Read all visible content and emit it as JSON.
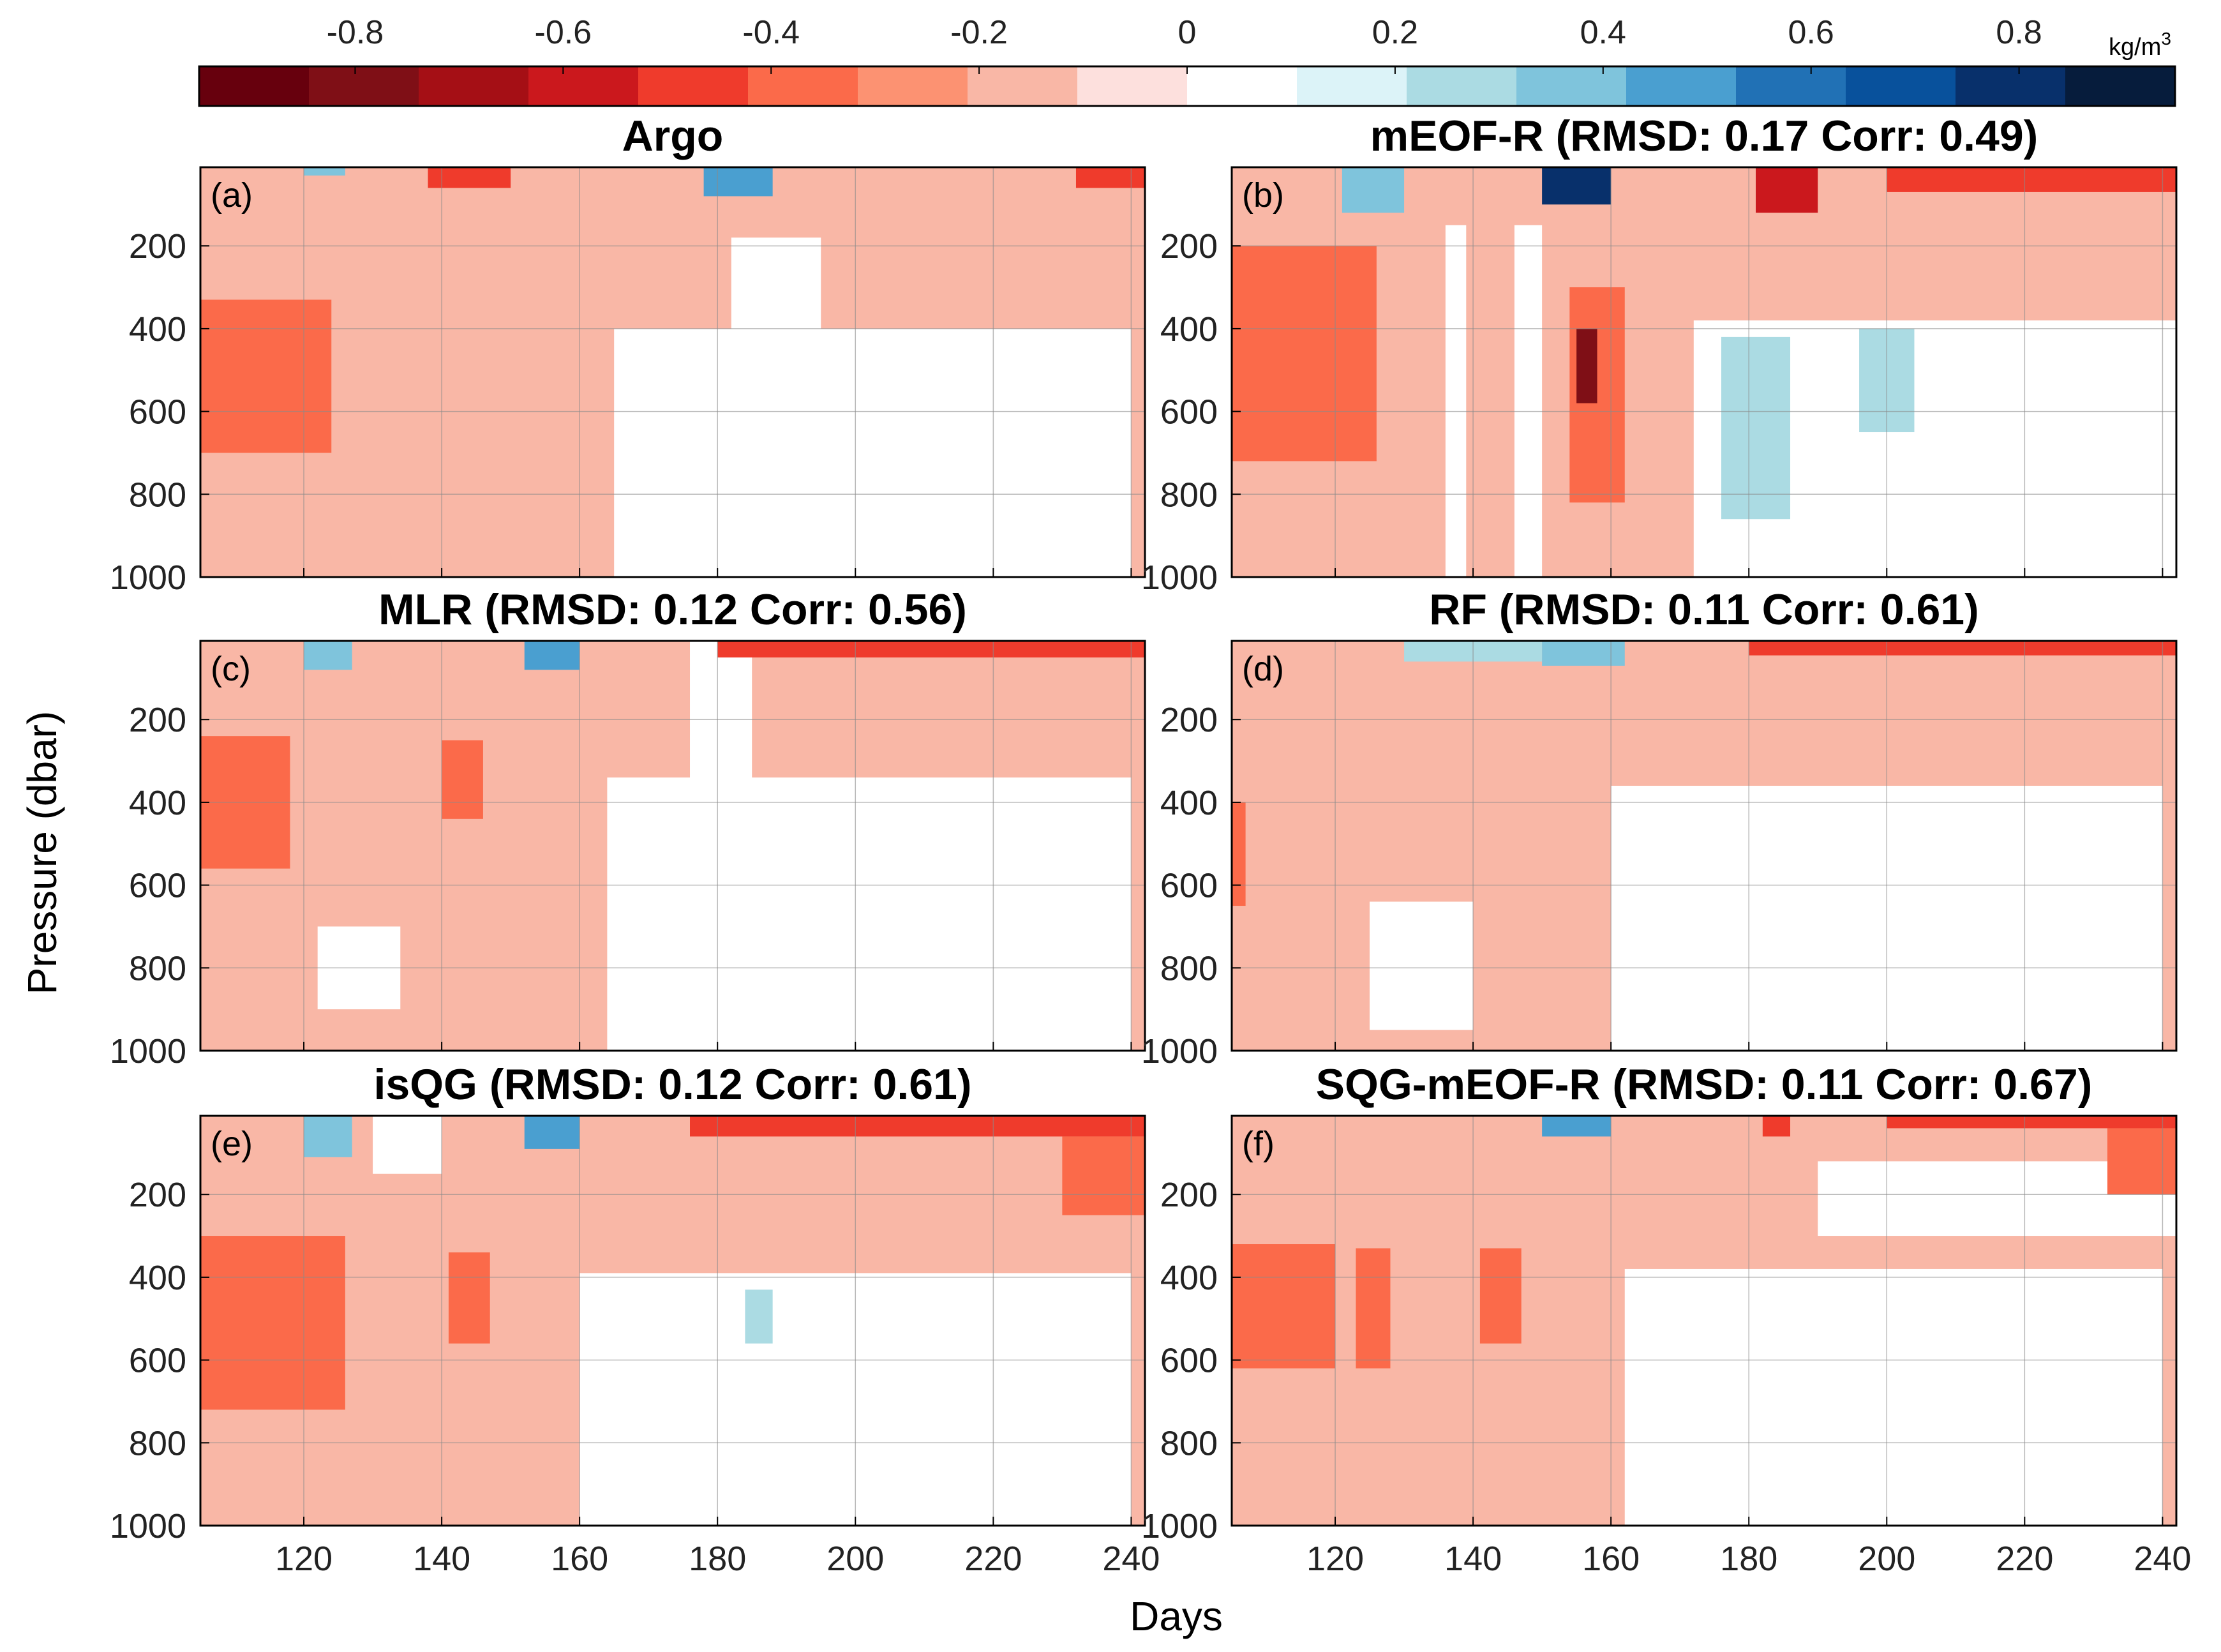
{
  "chart_data": {
    "type": "heatmap",
    "colorbar": {
      "unit": "kg/m",
      "unit_superscript": "3",
      "ticks": [
        -0.8,
        -0.6,
        -0.4,
        -0.2,
        0,
        0.2,
        0.4,
        0.6,
        0.8
      ],
      "tick_labels": [
        "-0.8",
        "-0.6",
        "-0.4",
        "-0.2",
        "0",
        "0.2",
        "0.4",
        "0.6",
        "0.8"
      ],
      "range": [
        -0.95,
        0.95
      ],
      "colors": [
        "#67000d",
        "#7f0f16",
        "#a50f15",
        "#cb181d",
        "#ef3b2c",
        "#fb6a4a",
        "#fc9272",
        "#f9b7a6",
        "#fde0dd",
        "#ffffff",
        "#dcf3f8",
        "#abdbe3",
        "#7fc4dc",
        "#4a9fd0",
        "#2171b5",
        "#08519c",
        "#08306b",
        "#061c3c"
      ]
    },
    "x_axis": {
      "label": "Days",
      "range": [
        105,
        242
      ],
      "ticks": [
        120,
        140,
        160,
        180,
        200,
        220,
        240
      ],
      "tick_labels": [
        "120",
        "140",
        "160",
        "180",
        "200",
        "220",
        "240"
      ]
    },
    "y_axis": {
      "label": "Pressure (dbar)",
      "range": [
        10,
        1000
      ],
      "ticks": [
        200,
        400,
        600,
        800,
        1000
      ],
      "tick_labels": [
        "200",
        "400",
        "600",
        "800",
        "1000"
      ],
      "reversed": true
    },
    "panels": [
      {
        "id": "a",
        "label": "(a)",
        "title": "Argo",
        "method": "Argo",
        "rmsd": null,
        "corr": null
      },
      {
        "id": "b",
        "label": "(b)",
        "title": "mEOF-R (RMSD: 0.17 Corr: 0.49)",
        "method": "mEOF-R",
        "rmsd": 0.17,
        "corr": 0.49
      },
      {
        "id": "c",
        "label": "(c)",
        "title": "MLR (RMSD: 0.12 Corr: 0.56)",
        "method": "MLR",
        "rmsd": 0.12,
        "corr": 0.56
      },
      {
        "id": "d",
        "label": "(d)",
        "title": "RF (RMSD: 0.11 Corr: 0.61)",
        "method": "RF",
        "rmsd": 0.11,
        "corr": 0.61
      },
      {
        "id": "e",
        "label": "(e)",
        "title": "isQG (RMSD: 0.12 Corr: 0.61)",
        "method": "isQG",
        "rmsd": 0.12,
        "corr": 0.61
      },
      {
        "id": "f",
        "label": "(f)",
        "title": "SQG-mEOF-R (RMSD: 0.11 Corr: 0.67)",
        "method": "SQG-mEOF-R",
        "rmsd": 0.11,
        "corr": 0.67
      }
    ],
    "anomaly_patches": {
      "a": [
        {
          "day": [
            105,
            242
          ],
          "p": [
            10,
            1000
          ],
          "v": -0.15
        },
        {
          "day": [
            165,
            240
          ],
          "p": [
            400,
            1000
          ],
          "v": 0
        },
        {
          "day": [
            182,
            195
          ],
          "p": [
            180,
            420
          ],
          "v": 0
        },
        {
          "day": [
            105,
            124
          ],
          "p": [
            330,
            700
          ],
          "v": -0.35
        },
        {
          "day": [
            138,
            150
          ],
          "p": [
            10,
            60
          ],
          "v": -0.45
        },
        {
          "day": [
            178,
            188
          ],
          "p": [
            10,
            80
          ],
          "v": 0.45
        },
        {
          "day": [
            232,
            242
          ],
          "p": [
            10,
            60
          ],
          "v": -0.45
        },
        {
          "day": [
            120,
            126
          ],
          "p": [
            10,
            30
          ],
          "v": 0.35
        }
      ],
      "b": [
        {
          "day": [
            105,
            242
          ],
          "p": [
            10,
            1000
          ],
          "v": -0.15
        },
        {
          "day": [
            172,
            242
          ],
          "p": [
            380,
            1000
          ],
          "v": 0
        },
        {
          "day": [
            136,
            139
          ],
          "p": [
            150,
            1000
          ],
          "v": 0
        },
        {
          "day": [
            146,
            150
          ],
          "p": [
            150,
            1000
          ],
          "v": 0
        },
        {
          "day": [
            105,
            126
          ],
          "p": [
            200,
            720
          ],
          "v": -0.35
        },
        {
          "day": [
            154,
            162
          ],
          "p": [
            300,
            820
          ],
          "v": -0.35
        },
        {
          "day": [
            155,
            158
          ],
          "p": [
            400,
            580
          ],
          "v": -0.75
        },
        {
          "day": [
            121,
            130
          ],
          "p": [
            10,
            120
          ],
          "v": 0.35
        },
        {
          "day": [
            150,
            160
          ],
          "p": [
            10,
            100
          ],
          "v": 0.75
        },
        {
          "day": [
            176,
            186
          ],
          "p": [
            420,
            860
          ],
          "v": 0.25
        },
        {
          "day": [
            196,
            204
          ],
          "p": [
            400,
            650
          ],
          "v": 0.25
        },
        {
          "day": [
            181,
            190
          ],
          "p": [
            10,
            120
          ],
          "v": -0.55
        },
        {
          "day": [
            200,
            242
          ],
          "p": [
            10,
            70
          ],
          "v": -0.45
        }
      ],
      "c": [
        {
          "day": [
            105,
            242
          ],
          "p": [
            10,
            1000
          ],
          "v": -0.15
        },
        {
          "day": [
            164,
            240
          ],
          "p": [
            340,
            1000
          ],
          "v": 0
        },
        {
          "day": [
            176,
            185
          ],
          "p": [
            10,
            340
          ],
          "v": 0
        },
        {
          "day": [
            120,
            127
          ],
          "p": [
            10,
            80
          ],
          "v": 0.35
        },
        {
          "day": [
            152,
            160
          ],
          "p": [
            10,
            80
          ],
          "v": 0.45
        },
        {
          "day": [
            105,
            118
          ],
          "p": [
            240,
            560
          ],
          "v": -0.35
        },
        {
          "day": [
            140,
            146
          ],
          "p": [
            250,
            440
          ],
          "v": -0.35
        },
        {
          "day": [
            180,
            242
          ],
          "p": [
            10,
            50
          ],
          "v": -0.45
        },
        {
          "day": [
            122,
            134
          ],
          "p": [
            700,
            900
          ],
          "v": 0
        }
      ],
      "d": [
        {
          "day": [
            105,
            242
          ],
          "p": [
            10,
            1000
          ],
          "v": -0.15
        },
        {
          "day": [
            160,
            240
          ],
          "p": [
            360,
            1000
          ],
          "v": 0
        },
        {
          "day": [
            125,
            140
          ],
          "p": [
            640,
            950
          ],
          "v": 0
        },
        {
          "day": [
            130,
            150
          ],
          "p": [
            10,
            60
          ],
          "v": 0.25
        },
        {
          "day": [
            150,
            162
          ],
          "p": [
            10,
            70
          ],
          "v": 0.4
        },
        {
          "day": [
            180,
            242
          ],
          "p": [
            10,
            45
          ],
          "v": -0.45
        },
        {
          "day": [
            105,
            107
          ],
          "p": [
            400,
            650
          ],
          "v": -0.35
        }
      ],
      "e": [
        {
          "day": [
            105,
            242
          ],
          "p": [
            10,
            1000
          ],
          "v": -0.15
        },
        {
          "day": [
            160,
            240
          ],
          "p": [
            390,
            1000
          ],
          "v": 0
        },
        {
          "day": [
            130,
            140
          ],
          "p": [
            10,
            150
          ],
          "v": 0
        },
        {
          "day": [
            120,
            127
          ],
          "p": [
            10,
            110
          ],
          "v": 0.4
        },
        {
          "day": [
            152,
            160
          ],
          "p": [
            10,
            90
          ],
          "v": 0.45
        },
        {
          "day": [
            105,
            126
          ],
          "p": [
            300,
            720
          ],
          "v": -0.35
        },
        {
          "day": [
            141,
            147
          ],
          "p": [
            340,
            560
          ],
          "v": -0.35
        },
        {
          "day": [
            184,
            188
          ],
          "p": [
            430,
            560
          ],
          "v": 0.25
        },
        {
          "day": [
            176,
            242
          ],
          "p": [
            10,
            60
          ],
          "v": -0.45
        },
        {
          "day": [
            230,
            242
          ],
          "p": [
            60,
            250
          ],
          "v": -0.35
        }
      ],
      "f": [
        {
          "day": [
            105,
            242
          ],
          "p": [
            10,
            1000
          ],
          "v": -0.15
        },
        {
          "day": [
            162,
            240
          ],
          "p": [
            380,
            1000
          ],
          "v": 0
        },
        {
          "day": [
            190,
            242
          ],
          "p": [
            120,
            300
          ],
          "v": 0
        },
        {
          "day": [
            105,
            120
          ],
          "p": [
            320,
            620
          ],
          "v": -0.35
        },
        {
          "day": [
            123,
            128
          ],
          "p": [
            330,
            620
          ],
          "v": -0.35
        },
        {
          "day": [
            141,
            147
          ],
          "p": [
            330,
            560
          ],
          "v": -0.35
        },
        {
          "day": [
            150,
            160
          ],
          "p": [
            10,
            60
          ],
          "v": 0.45
        },
        {
          "day": [
            182,
            186
          ],
          "p": [
            10,
            60
          ],
          "v": -0.45
        },
        {
          "day": [
            200,
            242
          ],
          "p": [
            10,
            40
          ],
          "v": -0.45
        },
        {
          "day": [
            232,
            242
          ],
          "p": [
            40,
            200
          ],
          "v": -0.35
        }
      ]
    }
  }
}
